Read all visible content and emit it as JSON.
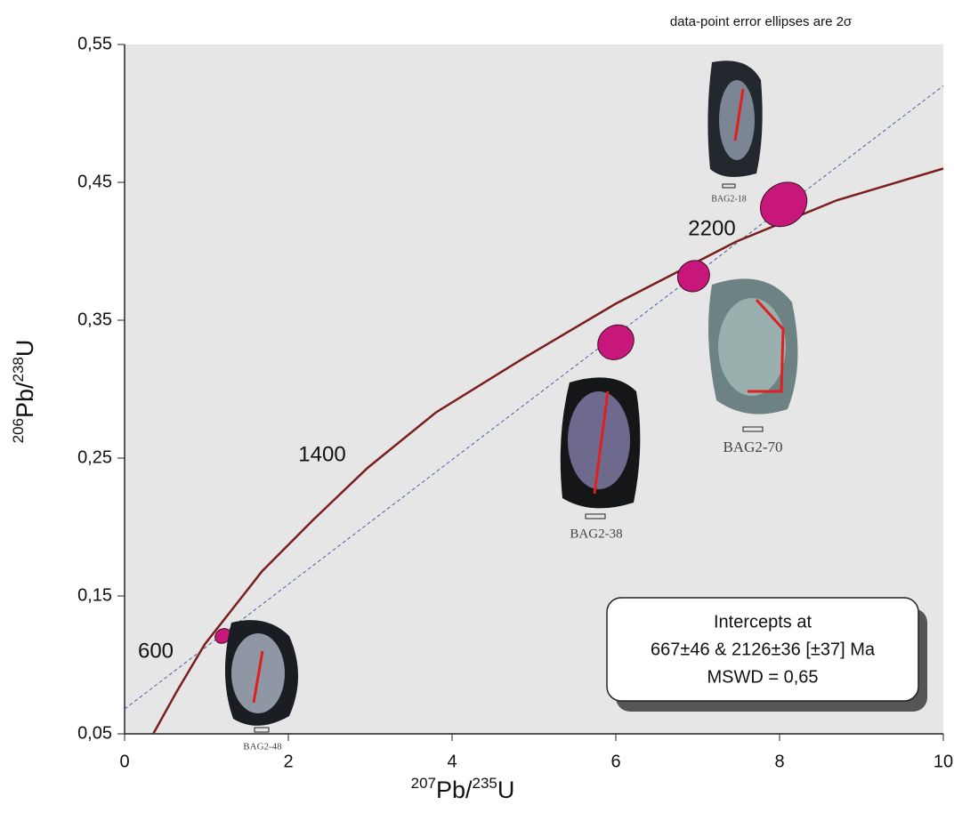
{
  "chart_data": {
    "type": "scatter",
    "note": "data-point error ellipses are 2σ",
    "x_label": [
      "207",
      "Pb/",
      "235",
      "U"
    ],
    "y_label": [
      "206",
      "Pb/",
      "238",
      "U"
    ],
    "xlim": [
      0,
      10
    ],
    "ylim": [
      0.05,
      0.55
    ],
    "xticks": [
      0,
      2,
      4,
      6,
      8,
      10
    ],
    "yticks": [
      {
        "value": 0.05,
        "label": "0,05"
      },
      {
        "value": 0.15,
        "label": "0,15"
      },
      {
        "value": 0.25,
        "label": "0,25"
      },
      {
        "value": 0.35,
        "label": "0,35"
      },
      {
        "value": 0.45,
        "label": "0,45"
      },
      {
        "value": 0.55,
        "label": "0,55"
      }
    ],
    "concordia": {
      "color": "#7a1e1e",
      "x": [
        0.35,
        0.64,
        0.98,
        1.68,
        2.3,
        2.97,
        3.8,
        4.86,
        6.0,
        7.47,
        8.7,
        10
      ],
      "y": [
        0.05,
        0.081,
        0.115,
        0.168,
        0.205,
        0.243,
        0.283,
        0.322,
        0.362,
        0.407,
        0.437,
        0.46
      ]
    },
    "age_labels": [
      "600",
      "1400",
      "2200"
    ],
    "discordia": {
      "color": "#4a5fa8",
      "x": [
        0,
        10
      ],
      "y": [
        0.068,
        0.52
      ]
    },
    "ellipses": {
      "color": "#c8177a",
      "x": [
        1.2,
        6.0,
        6.95,
        8.05
      ],
      "y": [
        0.121,
        0.334,
        0.382,
        0.434
      ],
      "x_err": [
        0.1,
        0.23,
        0.2,
        0.3
      ],
      "y_err": [
        0.005,
        0.012,
        0.011,
        0.015
      ]
    },
    "grain_labels": [
      "BAG2-48",
      "BAG2-38",
      "BAG2-70",
      "BAG2-18"
    ],
    "intercepts": [
      "Intercepts at",
      "667±46 & 2126±36   [±37]  Ma",
      "MSWD = 0,65"
    ]
  }
}
